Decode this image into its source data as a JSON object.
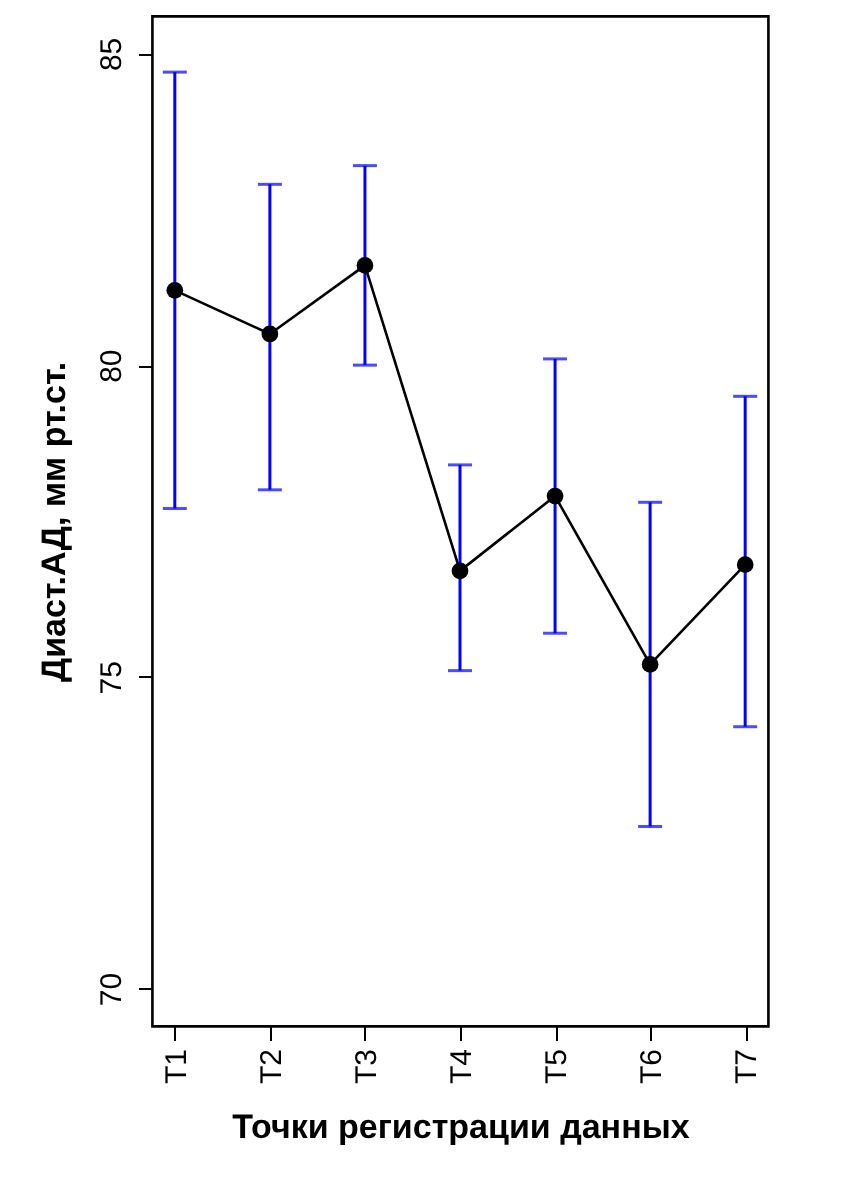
{
  "chart_data": {
    "type": "line",
    "xlabel": "Точки регистрации данных",
    "ylabel": "Диаст.АД, мм рт.ст.",
    "categories": [
      "T1",
      "T2",
      "T3",
      "T4",
      "T5",
      "T6",
      "T7"
    ],
    "values": [
      81.2,
      80.5,
      81.6,
      76.7,
      77.9,
      75.2,
      76.8
    ],
    "errors": [
      [
        77.7,
        84.7
      ],
      [
        78.0,
        82.9
      ],
      [
        80.0,
        83.2
      ],
      [
        75.1,
        78.4
      ],
      [
        75.7,
        80.1
      ],
      [
        72.6,
        77.8
      ],
      [
        74.2,
        79.5
      ]
    ],
    "color": "#000000",
    "marker": "circle",
    "line_style": "solid",
    "ylim": [
      69.4,
      85.6
    ],
    "yticks": [
      70,
      75,
      80,
      85
    ]
  }
}
